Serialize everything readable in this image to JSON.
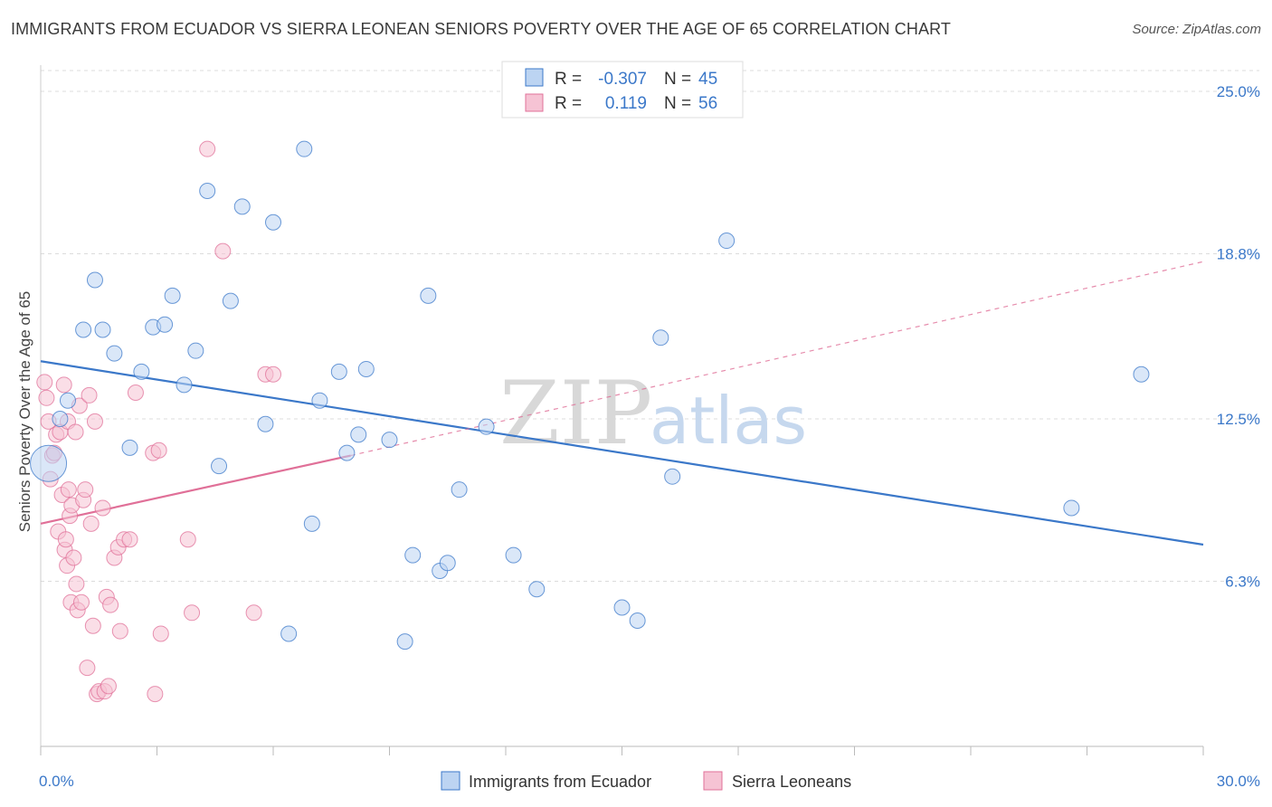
{
  "title": "IMMIGRANTS FROM ECUADOR VS SIERRA LEONEAN SENIORS POVERTY OVER THE AGE OF 65 CORRELATION CHART",
  "source": "Source: ZipAtlas.com",
  "watermark": {
    "zip": "ZIP",
    "atlas": "atlas"
  },
  "colors": {
    "blue": "#3b78c9",
    "pink": "#e07098",
    "blue_fill": "#bcd4f2",
    "pink_fill": "#f6c3d4"
  },
  "legend": {
    "blue": {
      "r_label": "R =",
      "r_value": "-0.307",
      "n_label": "N =",
      "n_value": "45"
    },
    "pink": {
      "r_label": "R =",
      "r_value": "0.119",
      "n_label": "N =",
      "n_value": "56"
    }
  },
  "chart_data": {
    "type": "scatter",
    "title": "IMMIGRANTS FROM ECUADOR VS SIERRA LEONEAN SENIORS POVERTY OVER THE AGE OF 65 CORRELATION CHART",
    "xlabel": "",
    "ylabel": "Seniors Poverty Over the Age of 65",
    "xlim": [
      0,
      30
    ],
    "ylim": [
      0,
      26
    ],
    "x_tick_labels": [
      "0.0%",
      "30.0%"
    ],
    "y_ticks": [
      6.3,
      12.5,
      18.8,
      25.0
    ],
    "y_tick_labels": [
      "6.3%",
      "12.5%",
      "18.8%",
      "25.0%"
    ],
    "grid": true,
    "legend_position": "top-center",
    "series": [
      {
        "name": "Immigrants from Ecuador",
        "color": "#3b78c9",
        "trend": {
          "x": [
            0,
            30
          ],
          "y": [
            14.7,
            7.7
          ]
        },
        "points": [
          {
            "x": 0.2,
            "y": 10.8,
            "big": true
          },
          {
            "x": 0.5,
            "y": 12.5
          },
          {
            "x": 0.7,
            "y": 13.2
          },
          {
            "x": 1.1,
            "y": 15.9
          },
          {
            "x": 1.4,
            "y": 17.8
          },
          {
            "x": 1.6,
            "y": 15.9
          },
          {
            "x": 1.9,
            "y": 15.0
          },
          {
            "x": 2.3,
            "y": 11.4
          },
          {
            "x": 2.6,
            "y": 14.3
          },
          {
            "x": 2.9,
            "y": 16.0
          },
          {
            "x": 3.2,
            "y": 16.1
          },
          {
            "x": 3.4,
            "y": 17.2
          },
          {
            "x": 3.7,
            "y": 13.8
          },
          {
            "x": 4.0,
            "y": 15.1
          },
          {
            "x": 4.3,
            "y": 21.2
          },
          {
            "x": 4.6,
            "y": 10.7
          },
          {
            "x": 4.9,
            "y": 17.0
          },
          {
            "x": 5.2,
            "y": 20.6
          },
          {
            "x": 5.8,
            "y": 12.3
          },
          {
            "x": 6.0,
            "y": 20.0
          },
          {
            "x": 6.4,
            "y": 4.3
          },
          {
            "x": 6.8,
            "y": 22.8
          },
          {
            "x": 7.0,
            "y": 8.5
          },
          {
            "x": 7.2,
            "y": 13.2
          },
          {
            "x": 7.7,
            "y": 14.3
          },
          {
            "x": 7.9,
            "y": 11.2
          },
          {
            "x": 8.2,
            "y": 11.9
          },
          {
            "x": 8.4,
            "y": 14.4
          },
          {
            "x": 9.0,
            "y": 11.7
          },
          {
            "x": 9.4,
            "y": 4.0
          },
          {
            "x": 9.6,
            "y": 7.3
          },
          {
            "x": 10.0,
            "y": 17.2
          },
          {
            "x": 10.3,
            "y": 6.7
          },
          {
            "x": 10.5,
            "y": 7.0
          },
          {
            "x": 10.8,
            "y": 9.8
          },
          {
            "x": 11.5,
            "y": 12.2
          },
          {
            "x": 12.2,
            "y": 7.3
          },
          {
            "x": 12.8,
            "y": 6.0
          },
          {
            "x": 15.0,
            "y": 5.3
          },
          {
            "x": 15.4,
            "y": 4.8
          },
          {
            "x": 16.0,
            "y": 15.6
          },
          {
            "x": 16.3,
            "y": 10.3
          },
          {
            "x": 17.7,
            "y": 19.3
          },
          {
            "x": 26.6,
            "y": 9.1
          },
          {
            "x": 28.4,
            "y": 14.2
          }
        ]
      },
      {
        "name": "Sierra Leoneans",
        "color": "#e07098",
        "trend": {
          "x": [
            0,
            8.0
          ],
          "y": [
            8.5,
            11.1
          ]
        },
        "trend_ext": {
          "x": [
            8.0,
            30
          ],
          "y": [
            11.1,
            18.5
          ]
        },
        "points": [
          {
            "x": 0.1,
            "y": 13.9
          },
          {
            "x": 0.15,
            "y": 13.3
          },
          {
            "x": 0.2,
            "y": 12.4
          },
          {
            "x": 0.25,
            "y": 10.2
          },
          {
            "x": 0.3,
            "y": 11.1
          },
          {
            "x": 0.35,
            "y": 11.2
          },
          {
            "x": 0.4,
            "y": 11.9
          },
          {
            "x": 0.45,
            "y": 8.2
          },
          {
            "x": 0.5,
            "y": 12.0
          },
          {
            "x": 0.55,
            "y": 9.6
          },
          {
            "x": 0.6,
            "y": 13.8
          },
          {
            "x": 0.62,
            "y": 7.5
          },
          {
            "x": 0.65,
            "y": 7.9
          },
          {
            "x": 0.68,
            "y": 6.9
          },
          {
            "x": 0.7,
            "y": 12.4
          },
          {
            "x": 0.72,
            "y": 9.8
          },
          {
            "x": 0.75,
            "y": 8.8
          },
          {
            "x": 0.78,
            "y": 5.5
          },
          {
            "x": 0.8,
            "y": 9.2
          },
          {
            "x": 0.85,
            "y": 7.2
          },
          {
            "x": 0.9,
            "y": 12.0
          },
          {
            "x": 0.92,
            "y": 6.2
          },
          {
            "x": 0.95,
            "y": 5.2
          },
          {
            "x": 1.0,
            "y": 13.0
          },
          {
            "x": 1.05,
            "y": 5.5
          },
          {
            "x": 1.1,
            "y": 9.4
          },
          {
            "x": 1.15,
            "y": 9.8
          },
          {
            "x": 1.2,
            "y": 3.0
          },
          {
            "x": 1.25,
            "y": 13.4
          },
          {
            "x": 1.3,
            "y": 8.5
          },
          {
            "x": 1.35,
            "y": 4.6
          },
          {
            "x": 1.4,
            "y": 12.4
          },
          {
            "x": 1.45,
            "y": 2.0
          },
          {
            "x": 1.5,
            "y": 2.1
          },
          {
            "x": 1.6,
            "y": 9.1
          },
          {
            "x": 1.65,
            "y": 2.1
          },
          {
            "x": 1.7,
            "y": 5.7
          },
          {
            "x": 1.75,
            "y": 2.3
          },
          {
            "x": 1.8,
            "y": 5.4
          },
          {
            "x": 1.9,
            "y": 7.2
          },
          {
            "x": 2.0,
            "y": 7.6
          },
          {
            "x": 2.05,
            "y": 4.4
          },
          {
            "x": 2.15,
            "y": 7.9
          },
          {
            "x": 2.3,
            "y": 7.9
          },
          {
            "x": 2.45,
            "y": 13.5
          },
          {
            "x": 2.9,
            "y": 11.2
          },
          {
            "x": 2.95,
            "y": 2.0
          },
          {
            "x": 3.05,
            "y": 11.3
          },
          {
            "x": 3.1,
            "y": 4.3
          },
          {
            "x": 3.8,
            "y": 7.9
          },
          {
            "x": 3.9,
            "y": 5.1
          },
          {
            "x": 4.3,
            "y": 22.8
          },
          {
            "x": 4.7,
            "y": 18.9
          },
          {
            "x": 5.5,
            "y": 5.1
          },
          {
            "x": 5.8,
            "y": 14.2
          },
          {
            "x": 6.0,
            "y": 14.2
          }
        ]
      }
    ]
  }
}
